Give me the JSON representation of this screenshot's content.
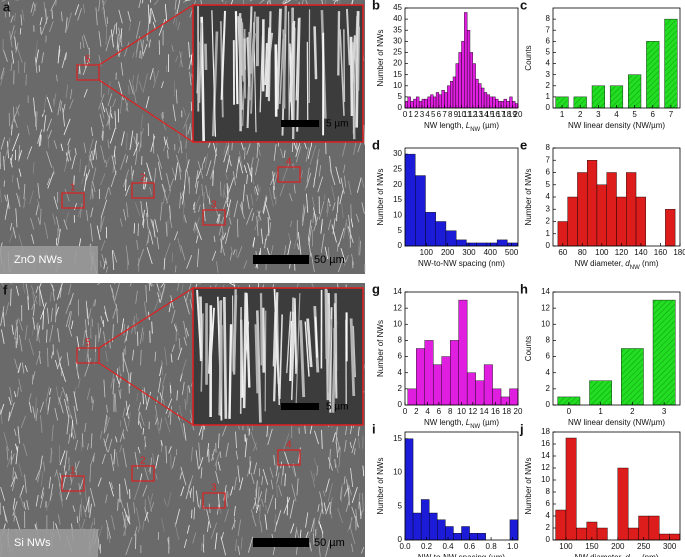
{
  "panels": [
    {
      "letter": "a",
      "caption": "ZnO NWs",
      "scale": "50 µm",
      "inset_scale": "5 µm",
      "regions": [
        "1",
        "2",
        "3",
        "4",
        "5"
      ]
    },
    {
      "letter": "f",
      "caption": "Si NWs",
      "scale": "50 µm",
      "inset_scale": "5 µm",
      "regions": [
        "1",
        "2",
        "3",
        "4",
        "5"
      ]
    }
  ],
  "chart_data": [
    {
      "type": "histogram",
      "label": "b",
      "color": "#e01ee0",
      "xlabel": {
        "pre": "NW length, ",
        "sym": "L",
        "sub": "NW",
        "post": " (µm)"
      },
      "ylabel": "Number of NWs",
      "bins": [
        0,
        0.5,
        1,
        1.5,
        2,
        2.5,
        3,
        3.5,
        4,
        4.5,
        5,
        5.5,
        6,
        6.5,
        7,
        7.5,
        8,
        8.5,
        9,
        9.5,
        10,
        10.5,
        11,
        11.5,
        12,
        12.5,
        13,
        13.5,
        14,
        14.5,
        15,
        15.5,
        16,
        16.5,
        17,
        17.5,
        18,
        18.5,
        19,
        19.5,
        20
      ],
      "values": [
        3,
        5,
        3,
        4,
        5,
        3,
        4,
        4,
        5,
        6,
        5,
        7,
        6,
        8,
        7,
        10,
        12,
        14,
        20,
        25,
        30,
        43,
        35,
        25,
        20,
        13,
        11,
        9,
        7,
        6,
        5,
        5,
        4,
        3,
        3,
        4,
        3,
        5,
        3,
        2
      ],
      "xlim": [
        0,
        20
      ],
      "xticks": [
        0,
        1,
        2,
        3,
        4,
        5,
        6,
        7,
        8,
        9,
        10,
        11,
        12,
        13,
        14,
        15,
        16,
        17,
        18,
        19,
        20
      ],
      "ylim": [
        0,
        45
      ],
      "yticks": [
        0,
        5,
        10,
        15,
        20,
        25,
        30,
        35,
        40,
        45
      ]
    },
    {
      "type": "bar",
      "label": "c",
      "color": "#22dd22",
      "xlabel": "NW linear density (NW/µm)",
      "ylabel": "Counts",
      "categories": [
        "1",
        "2",
        "3",
        "4",
        "5",
        "6",
        "7"
      ],
      "values": [
        1,
        1,
        2,
        2,
        3,
        6,
        8
      ],
      "ylim": [
        0,
        9
      ],
      "yticks": [
        0,
        1,
        2,
        3,
        4,
        5,
        6,
        7,
        8
      ]
    },
    {
      "type": "histogram",
      "label": "d",
      "color": "#1c1cd8",
      "xlabel": "NW-to-NW spacing (nm)",
      "ylabel": "Number of NWs",
      "bins": [
        0,
        48,
        96,
        144,
        192,
        240,
        288,
        336,
        384,
        432,
        480,
        528
      ],
      "values": [
        30,
        23,
        11,
        8,
        5,
        2,
        1,
        1,
        1,
        2,
        1
      ],
      "xlim": [
        0,
        530
      ],
      "xticks": [
        100,
        200,
        300,
        400,
        500
      ],
      "ylim": [
        0,
        32
      ],
      "yticks": [
        0,
        5,
        10,
        15,
        20,
        25,
        30
      ]
    },
    {
      "type": "histogram",
      "label": "e",
      "color": "#dd1c1c",
      "xlabel": {
        "pre": "NW diameter, ",
        "sym": "d",
        "sub": "NW",
        "post": " (nm)"
      },
      "ylabel": "Number of NWs",
      "bins": [
        55,
        65,
        75,
        85,
        95,
        105,
        115,
        125,
        135,
        145,
        155,
        165,
        175
      ],
      "values": [
        2,
        4,
        6,
        7,
        5,
        6,
        4,
        6,
        4,
        0,
        0,
        3
      ],
      "xlim": [
        50,
        180
      ],
      "xticks": [
        60,
        80,
        100,
        120,
        140,
        160,
        180
      ],
      "ylim": [
        0,
        8
      ],
      "yticks": [
        0,
        1,
        2,
        3,
        4,
        5,
        6,
        7,
        8
      ]
    },
    {
      "type": "histogram",
      "label": "g",
      "color": "#e01ee0",
      "xlabel": {
        "pre": "NW length, ",
        "sym": "L",
        "sub": "NW",
        "post": " (µm)"
      },
      "ylabel": "Number of NWs",
      "bins": [
        0.5,
        2,
        3.5,
        5,
        6.5,
        8,
        9.5,
        11,
        12.5,
        14,
        15.5,
        17,
        18.5,
        20
      ],
      "values": [
        2,
        7,
        8,
        5,
        6,
        8,
        13,
        4,
        3,
        5,
        2,
        1,
        2
      ],
      "xlim": [
        0,
        20
      ],
      "xticks": [
        0,
        2,
        4,
        6,
        8,
        10,
        12,
        14,
        16,
        18,
        20
      ],
      "ylim": [
        0,
        14
      ],
      "yticks": [
        0,
        2,
        4,
        6,
        8,
        10,
        12,
        14
      ]
    },
    {
      "type": "bar",
      "label": "h",
      "color": "#22dd22",
      "xlabel": "NW linear density (NW/µm)",
      "ylabel": "Counts",
      "categories": [
        "0",
        "1",
        "2",
        "3"
      ],
      "values": [
        1,
        3,
        7,
        13
      ],
      "ylim": [
        0,
        14
      ],
      "yticks": [
        0,
        2,
        4,
        6,
        8,
        10,
        12,
        14
      ]
    },
    {
      "type": "histogram",
      "label": "i",
      "color": "#1c1cd8",
      "xlabel": "NW-to-NW spacing (µm)",
      "ylabel": "Number of NWs",
      "bins": [
        0,
        0.075,
        0.15,
        0.225,
        0.3,
        0.375,
        0.45,
        0.525,
        0.6,
        0.675,
        0.75,
        0.825,
        0.9,
        0.975,
        1.05
      ],
      "values": [
        15,
        4,
        6,
        4,
        3,
        2,
        1,
        2,
        1,
        1,
        0,
        0,
        0,
        3
      ],
      "xlim": [
        0,
        1.05
      ],
      "xticks": [
        {
          "value": 0,
          "label": "0.0"
        },
        0.2,
        0.4,
        0.6,
        0.8,
        {
          "value": 1,
          "label": "1.0"
        }
      ],
      "ylim": [
        0,
        16
      ],
      "yticks": [
        0,
        5,
        10,
        15
      ]
    },
    {
      "type": "histogram",
      "label": "j",
      "color": "#dd1c1c",
      "xlabel": {
        "pre": "NW diameter, ",
        "sym": "d",
        "sub": "NW",
        "post": " (nm)"
      },
      "ylabel": "Number of NWs",
      "bins": [
        80,
        100,
        120,
        140,
        160,
        180,
        200,
        220,
        240,
        260,
        280,
        300,
        320
      ],
      "values": [
        5,
        17,
        2,
        3,
        2,
        0,
        12,
        2,
        4,
        4,
        1,
        1
      ],
      "xlim": [
        75,
        320
      ],
      "xticks": [
        100,
        150,
        200,
        250,
        300
      ],
      "ylim": [
        0,
        18
      ],
      "yticks": [
        0,
        2,
        4,
        6,
        8,
        10,
        12,
        14,
        16,
        18
      ]
    }
  ]
}
